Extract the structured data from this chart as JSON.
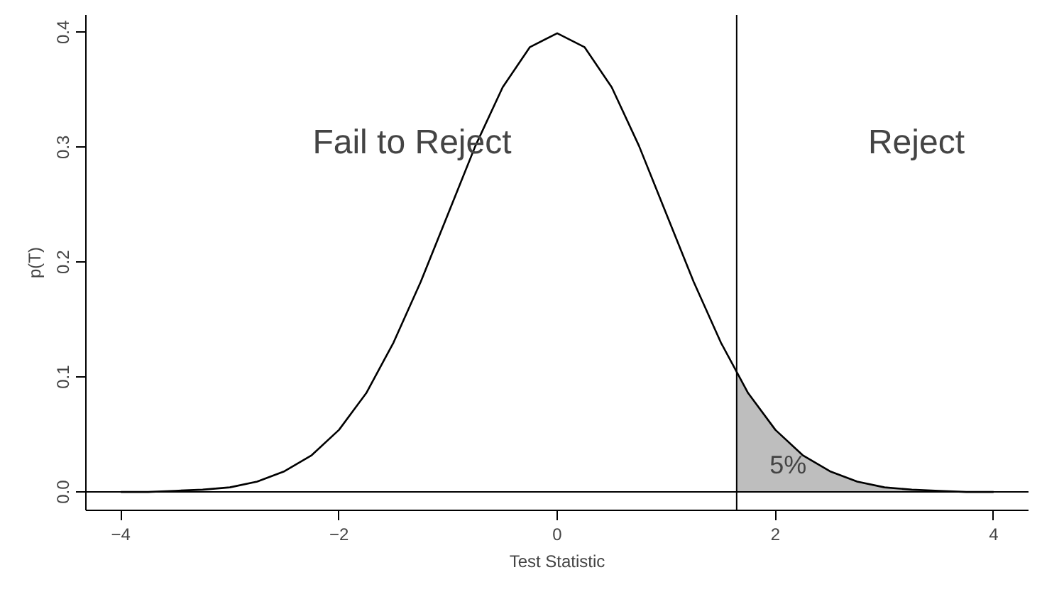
{
  "chart_data": {
    "type": "line",
    "xlabel": "Test Statistic",
    "ylabel": "p(T)",
    "xlim": [
      -4.32,
      4.32
    ],
    "ylim": [
      -0.016,
      0.415
    ],
    "xticks": [
      {
        "value": -4,
        "label": "−4"
      },
      {
        "value": -2,
        "label": "−2"
      },
      0,
      2,
      4
    ],
    "yticks": [
      {
        "value": 0,
        "label": "0.0"
      },
      0.1,
      0.2,
      0.3,
      0.4
    ],
    "grid": false,
    "marker": "none",
    "line_style": "solid",
    "series": [
      {
        "color": "#000000",
        "x": [
          -4,
          -3.75,
          -3.5,
          -3.25,
          -3,
          -2.75,
          -2.5,
          -2.25,
          -2,
          -1.75,
          -1.5,
          -1.25,
          -1,
          -0.75,
          -0.5,
          -0.25,
          0,
          0.25,
          0.5,
          0.75,
          1,
          1.25,
          1.5,
          1.75,
          2,
          2.25,
          2.5,
          2.75,
          3,
          3.25,
          3.5,
          3.75,
          4
        ],
        "values": [
          0.0,
          0.0,
          0.001,
          0.002,
          0.004,
          0.009,
          0.018,
          0.032,
          0.054,
          0.086,
          0.13,
          0.183,
          0.242,
          0.301,
          0.352,
          0.387,
          0.399,
          0.387,
          0.352,
          0.301,
          0.242,
          0.183,
          0.13,
          0.086,
          0.054,
          0.032,
          0.018,
          0.009,
          0.004,
          0.002,
          0.001,
          0.0,
          0.0
        ]
      },
      {
        "type": "area",
        "color": "#bebebe",
        "x": [
          1.645,
          1.75,
          2,
          2.25,
          2.5,
          2.75,
          3,
          3.25,
          3.5,
          3.75,
          4
        ],
        "values": [
          0.103,
          0.086,
          0.054,
          0.032,
          0.018,
          0.009,
          0.004,
          0.002,
          0.001,
          0.0,
          0.0
        ]
      }
    ],
    "ref_lines": [
      {
        "axis": "y",
        "value": 0,
        "color": "#000000"
      },
      {
        "axis": "x",
        "value": 1.645,
        "color": "#000000"
      }
    ],
    "annotations": [
      "Fail to Reject",
      "Reject",
      "5%"
    ]
  }
}
